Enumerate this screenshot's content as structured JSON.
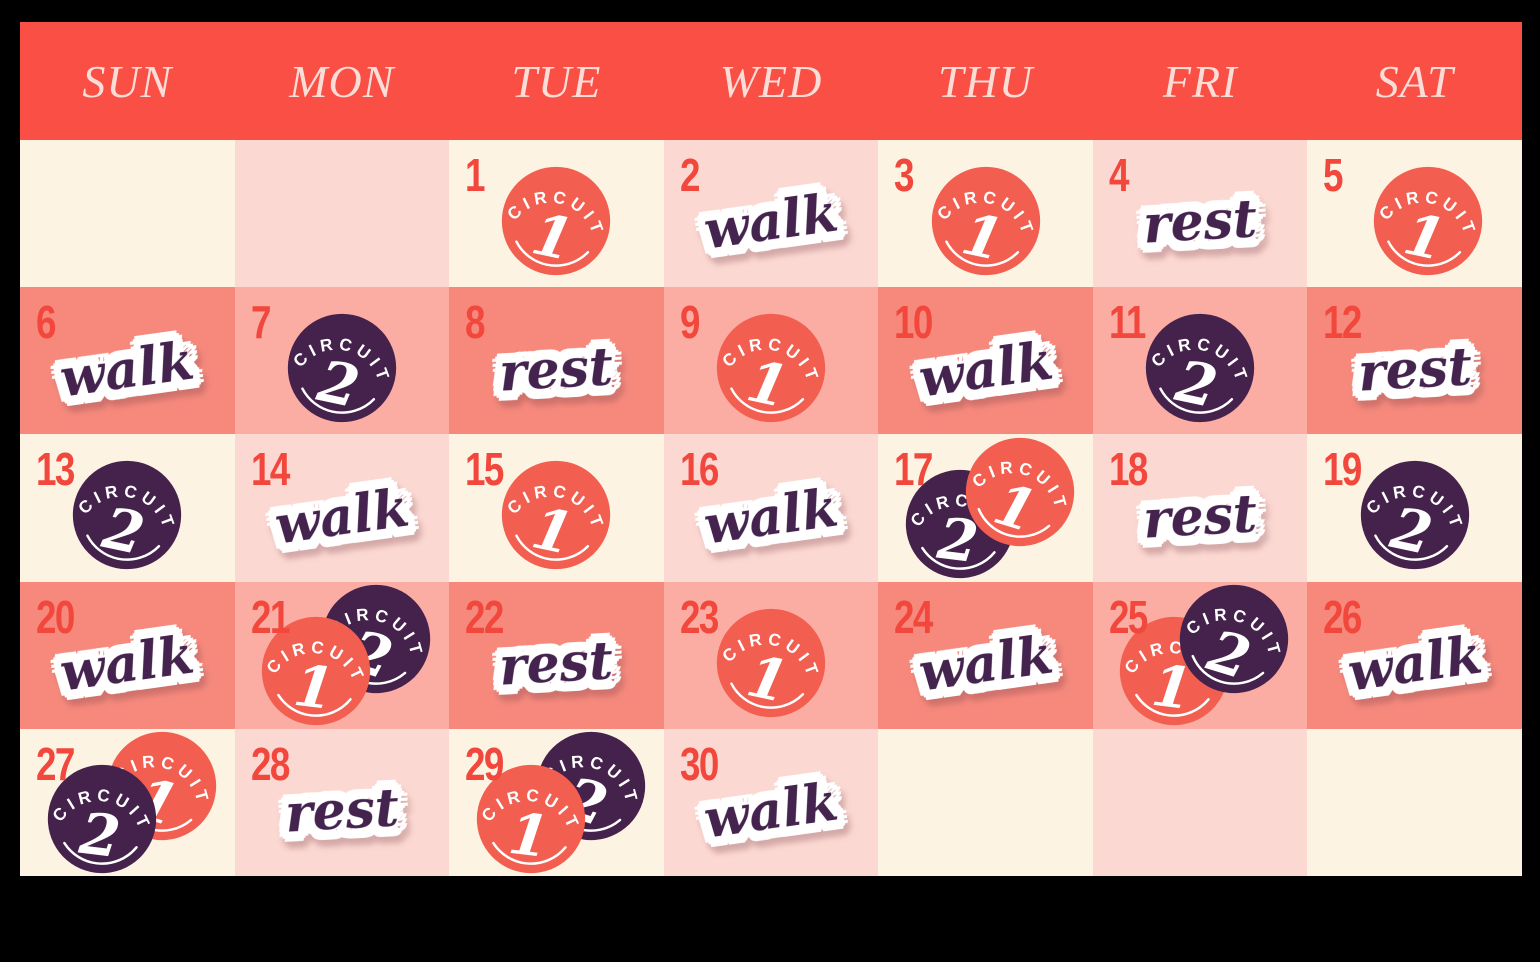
{
  "weekdays": [
    "SUN",
    "MON",
    "TUE",
    "WED",
    "THU",
    "FRI",
    "SAT"
  ],
  "labels": {
    "walk": "walk",
    "rest": "rest"
  },
  "badges": {
    "circuit1": {
      "arch": "CIRCUIT",
      "number": "1"
    },
    "circuit2": {
      "arch": "CIRCUIT",
      "number": "2"
    }
  },
  "colors": {
    "frame": "#000000",
    "header_red": "#FA4F45",
    "header_text": "#FBDDD8",
    "cell_cream": "#FCF3E2",
    "cell_light_pink": "#FCD8D2",
    "cell_salmon": "#F6897C",
    "cell_mid_pink": "#FBACA3",
    "badge_coral": "#F25E4F",
    "badge_purple": "#44224C",
    "date_red": "#F2473C",
    "sticker_ink": "#44234E",
    "sticker_outline": "#FFFFFF"
  },
  "weeks": [
    [
      {},
      {},
      {
        "date": "1",
        "items": [
          {
            "kind": "badge",
            "type": "circuit1",
            "pos": "center"
          }
        ]
      },
      {
        "date": "2",
        "items": [
          {
            "kind": "sticker",
            "type": "walk"
          }
        ]
      },
      {
        "date": "3",
        "items": [
          {
            "kind": "badge",
            "type": "circuit1",
            "pos": "center"
          }
        ]
      },
      {
        "date": "4",
        "items": [
          {
            "kind": "sticker",
            "type": "rest"
          }
        ]
      },
      {
        "date": "5",
        "items": [
          {
            "kind": "badge",
            "type": "circuit1",
            "pos": "center-right"
          }
        ]
      }
    ],
    [
      {
        "date": "6",
        "items": [
          {
            "kind": "sticker",
            "type": "walk"
          }
        ]
      },
      {
        "date": "7",
        "items": [
          {
            "kind": "badge",
            "type": "circuit2",
            "pos": "center"
          }
        ]
      },
      {
        "date": "8",
        "items": [
          {
            "kind": "sticker",
            "type": "rest"
          }
        ]
      },
      {
        "date": "9",
        "items": [
          {
            "kind": "badge",
            "type": "circuit1",
            "pos": "center"
          }
        ]
      },
      {
        "date": "10",
        "items": [
          {
            "kind": "sticker",
            "type": "walk"
          }
        ]
      },
      {
        "date": "11",
        "items": [
          {
            "kind": "badge",
            "type": "circuit2",
            "pos": "center"
          }
        ]
      },
      {
        "date": "12",
        "items": [
          {
            "kind": "sticker",
            "type": "rest"
          }
        ]
      }
    ],
    [
      {
        "date": "13",
        "items": [
          {
            "kind": "badge",
            "type": "circuit2",
            "pos": "center"
          }
        ]
      },
      {
        "date": "14",
        "items": [
          {
            "kind": "sticker",
            "type": "walk"
          }
        ]
      },
      {
        "date": "15",
        "items": [
          {
            "kind": "badge",
            "type": "circuit1",
            "pos": "center"
          }
        ]
      },
      {
        "date": "16",
        "items": [
          {
            "kind": "sticker",
            "type": "walk"
          }
        ]
      },
      {
        "date": "17",
        "items": [
          {
            "kind": "badge",
            "type": "circuit2",
            "pos": "left"
          },
          {
            "kind": "badge",
            "type": "circuit1",
            "pos": "right"
          }
        ]
      },
      {
        "date": "18",
        "items": [
          {
            "kind": "sticker",
            "type": "rest"
          }
        ]
      },
      {
        "date": "19",
        "items": [
          {
            "kind": "badge",
            "type": "circuit2",
            "pos": "center"
          }
        ]
      }
    ],
    [
      {
        "date": "20",
        "items": [
          {
            "kind": "sticker",
            "type": "walk"
          }
        ]
      },
      {
        "date": "21",
        "items": [
          {
            "kind": "badge",
            "type": "circuit2",
            "pos": "right"
          },
          {
            "kind": "badge",
            "type": "circuit1",
            "pos": "left"
          }
        ]
      },
      {
        "date": "22",
        "items": [
          {
            "kind": "sticker",
            "type": "rest"
          }
        ]
      },
      {
        "date": "23",
        "items": [
          {
            "kind": "badge",
            "type": "circuit1",
            "pos": "center"
          }
        ]
      },
      {
        "date": "24",
        "items": [
          {
            "kind": "sticker",
            "type": "walk"
          }
        ]
      },
      {
        "date": "25",
        "items": [
          {
            "kind": "badge",
            "type": "circuit1",
            "pos": "left"
          },
          {
            "kind": "badge",
            "type": "circuit2",
            "pos": "right"
          }
        ]
      },
      {
        "date": "26",
        "items": [
          {
            "kind": "sticker",
            "type": "walk"
          }
        ]
      }
    ],
    [
      {
        "date": "27",
        "items": [
          {
            "kind": "badge",
            "type": "circuit1",
            "pos": "right"
          },
          {
            "kind": "badge",
            "type": "circuit2",
            "pos": "left"
          }
        ]
      },
      {
        "date": "28",
        "items": [
          {
            "kind": "sticker",
            "type": "rest"
          }
        ]
      },
      {
        "date": "29",
        "items": [
          {
            "kind": "badge",
            "type": "circuit2",
            "pos": "right"
          },
          {
            "kind": "badge",
            "type": "circuit1",
            "pos": "left"
          }
        ]
      },
      {
        "date": "30",
        "items": [
          {
            "kind": "sticker",
            "type": "walk"
          }
        ]
      },
      {},
      {},
      {}
    ]
  ]
}
